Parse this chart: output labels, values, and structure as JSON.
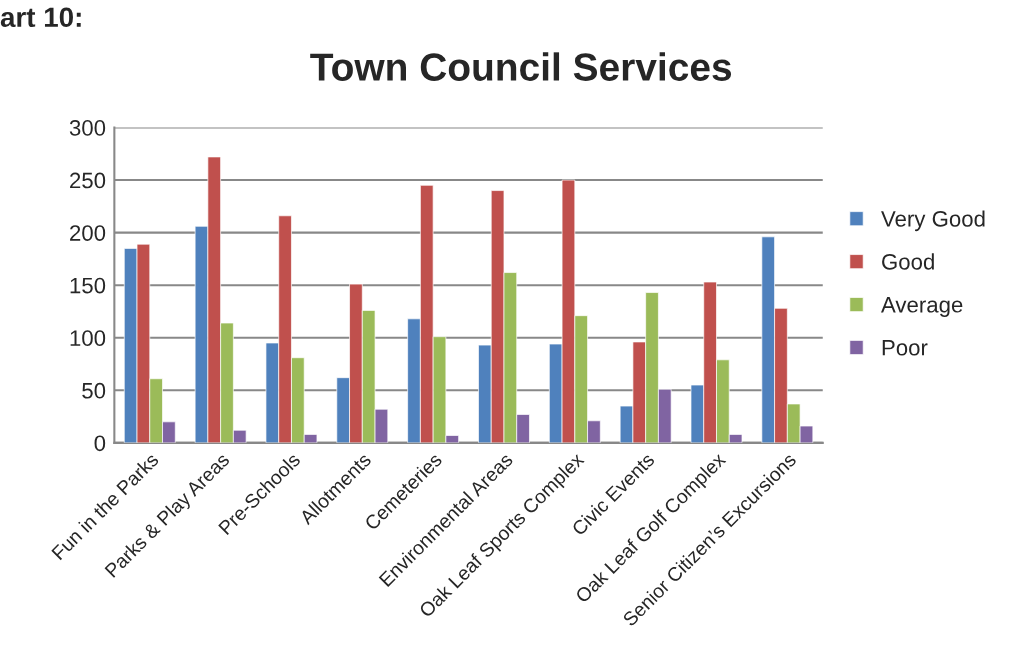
{
  "chart_data": {
    "type": "bar",
    "title": "Town Council Services",
    "annotations": [
      "art 10:"
    ],
    "categories": [
      "Fun in the Parks",
      "Parks & Play Areas",
      "Pre-Schools",
      "Allotments",
      "Cemeteries",
      "Environmental Areas",
      "Oak Leaf Sports Complex",
      "Civic Events",
      "Oak Leaf Golf Complex",
      "Senior Citizen’s Excursions"
    ],
    "series": [
      {
        "name": "Very Good",
        "color": "#4f81bd",
        "values": [
          185,
          206,
          95,
          62,
          118,
          93,
          94,
          35,
          55,
          196
        ]
      },
      {
        "name": "Good",
        "color": "#c0504d",
        "values": [
          189,
          272,
          216,
          151,
          245,
          240,
          250,
          96,
          153,
          128
        ]
      },
      {
        "name": "Average",
        "color": "#9bbb59",
        "values": [
          61,
          114,
          81,
          126,
          101,
          162,
          121,
          143,
          79,
          37
        ]
      },
      {
        "name": "Poor",
        "color": "#8064a2",
        "values": [
          20,
          12,
          8,
          32,
          7,
          27,
          21,
          51,
          8,
          16
        ]
      }
    ],
    "ylim": [
      0,
      300
    ],
    "yticks": [
      0,
      50,
      100,
      150,
      200,
      250,
      300
    ],
    "grid": "y",
    "legend": "right"
  }
}
